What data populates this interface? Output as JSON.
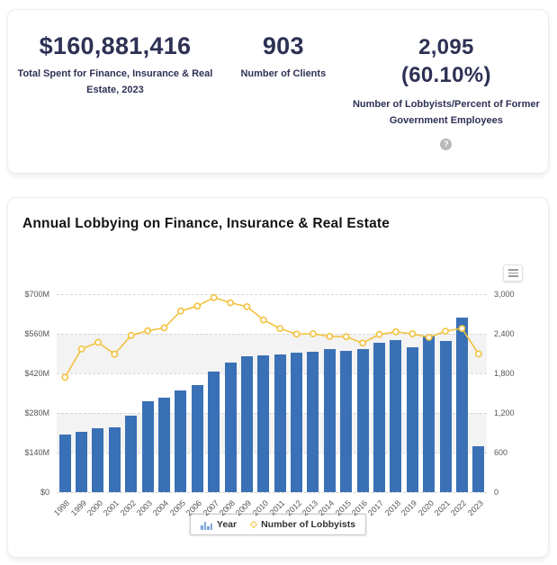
{
  "summary_card": {
    "stats": [
      {
        "value": "$160,881,416",
        "label": "Total Spent for Finance, Insurance & Real Estate, 2023"
      },
      {
        "value": "903",
        "label": "Number of Clients"
      },
      {
        "value": "2,095",
        "value2": "(60.10%)",
        "label": "Number of Lobbyists/Percent of Former Government Employees"
      }
    ],
    "help_icon_glyph": "?"
  },
  "chart_card": {
    "title": "Annual Lobbying on Finance, Insurance & Real Estate"
  },
  "chart_data": {
    "type": "bar",
    "title": "Annual Lobbying on Finance, Insurance & Real Estate",
    "categories": [
      "1998",
      "1999",
      "2000",
      "2001",
      "2002",
      "2003",
      "2004",
      "2005",
      "2006",
      "2007",
      "2008",
      "2009",
      "2010",
      "2011",
      "2012",
      "2013",
      "2014",
      "2015",
      "2016",
      "2017",
      "2018",
      "2019",
      "2020",
      "2021",
      "2022",
      "2023"
    ],
    "series": [
      {
        "name": "Year",
        "type": "bar",
        "axis": "left",
        "unit": "USD millions",
        "color": "#3a70b5",
        "values": [
          205,
          213,
          227,
          230,
          272,
          320,
          334,
          359,
          380,
          425,
          457,
          481,
          483,
          487,
          492,
          495,
          507,
          500,
          505,
          528,
          538,
          512,
          553,
          534,
          616,
          161
        ]
      },
      {
        "name": "Number of Lobbyists",
        "type": "line",
        "axis": "right",
        "color": "#f2c23e",
        "marker": "hollow-circle",
        "values": [
          1740,
          2170,
          2270,
          2090,
          2375,
          2445,
          2490,
          2745,
          2820,
          2950,
          2870,
          2810,
          2610,
          2480,
          2395,
          2400,
          2360,
          2355,
          2260,
          2390,
          2430,
          2400,
          2345,
          2440,
          2480,
          2095
        ]
      }
    ],
    "left_axis": {
      "min": 0,
      "max": 700,
      "ticks": [
        "$0",
        "$140M",
        "$280M",
        "$420M",
        "$560M",
        "$700M"
      ]
    },
    "right_axis": {
      "min": 0,
      "max": 3000,
      "ticks": [
        "0",
        "600",
        "1,200",
        "1,800",
        "2,400",
        "3,000"
      ]
    },
    "legend": [
      {
        "icon": "column-chart-icon",
        "label": "Year"
      },
      {
        "icon": "diamond-icon",
        "label": "Number of Lobbyists"
      }
    ],
    "grid": "dashed",
    "band_color": "#f3f3f3",
    "legend_position": "bottom-center"
  }
}
